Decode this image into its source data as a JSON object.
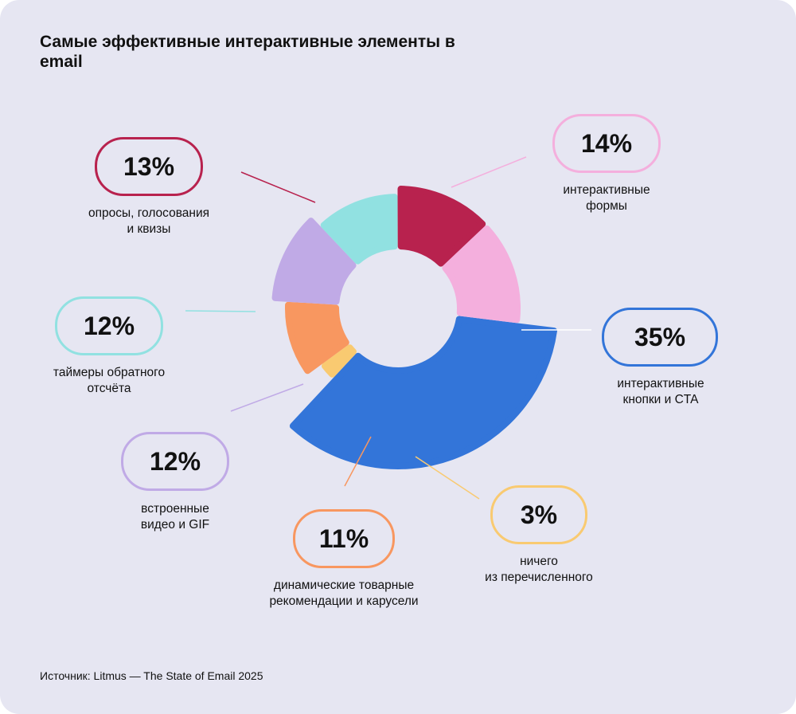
{
  "title": "Самые эффективные интерактивные элементы в email",
  "source": "Источник: Litmus — The State of Email 2025",
  "chart_data": {
    "type": "pie",
    "title": "Самые эффективные интерактивные элементы в email",
    "slices": [
      {
        "label_line1": "интерактивные",
        "label_line2": "кнопки и CTA",
        "value": 35,
        "display": "35%",
        "color": "#3375d9"
      },
      {
        "label_line1": "ничего",
        "label_line2": "из перечисленного",
        "value": 3,
        "display": "3%",
        "color": "#f9ca71"
      },
      {
        "label_line1": "динамические товарные",
        "label_line2": "рекомендации и карусели",
        "value": 11,
        "display": "11%",
        "color": "#f89760"
      },
      {
        "label_line1": "встроенные",
        "label_line2": "видео и GIF",
        "value": 12,
        "display": "12%",
        "color": "#c0aae6"
      },
      {
        "label_line1": "таймеры обратного",
        "label_line2": "отсчёта",
        "value": 12,
        "display": "12%",
        "color": "#91e1e1"
      },
      {
        "label_line1": "опросы, голосования",
        "label_line2": "и квизы",
        "value": 13,
        "display": "13%",
        "color": "#b8224e"
      },
      {
        "label_line1": "интерактивные",
        "label_line2": "формы",
        "value": 14,
        "display": "14%",
        "color": "#f4afdd"
      }
    ]
  }
}
